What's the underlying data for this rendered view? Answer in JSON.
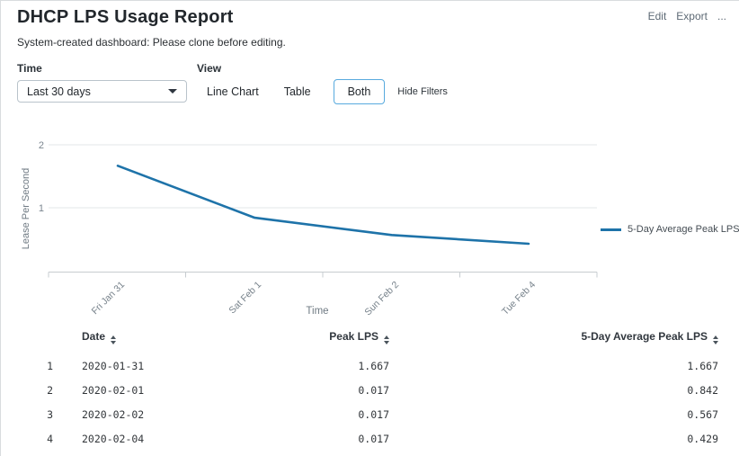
{
  "header": {
    "title": "DHCP LPS Usage Report",
    "subtitle": "System-created dashboard: Please clone before editing.",
    "actions": {
      "edit": "Edit",
      "export": "Export",
      "more": "..."
    }
  },
  "filters": {
    "time_label": "Time",
    "time_value": "Last 30 days",
    "view_label": "View",
    "view_options": [
      {
        "label": "Line Chart",
        "selected": false
      },
      {
        "label": "Table",
        "selected": false
      },
      {
        "label": "Both",
        "selected": true
      }
    ],
    "hide_filters_label": "Hide Filters"
  },
  "chart_data": {
    "type": "line",
    "title": "",
    "xlabel": "Time",
    "ylabel": "Lease Per Second",
    "x": [
      "Fri Jan 31",
      "Sat Feb 1",
      "Sun Feb 2",
      "Tue Feb 4"
    ],
    "series": [
      {
        "name": "5-Day Average Peak LPS",
        "values": [
          1.667,
          0.842,
          0.567,
          0.429
        ],
        "color": "#1e73a9"
      }
    ],
    "ylim": [
      0,
      2
    ],
    "yticks": [
      1,
      2
    ],
    "grid": "horizontal",
    "legend_position": "right"
  },
  "table": {
    "columns": [
      {
        "label": "Date",
        "sortable": true
      },
      {
        "label": "Peak LPS",
        "sortable": true
      },
      {
        "label": "5-Day Average Peak LPS",
        "sortable": true
      }
    ],
    "rows": [
      {
        "index": "1",
        "date": "2020-01-31",
        "peak_lps": "1.667",
        "avg_peak_lps": "1.667"
      },
      {
        "index": "2",
        "date": "2020-02-01",
        "peak_lps": "0.017",
        "avg_peak_lps": "0.842"
      },
      {
        "index": "3",
        "date": "2020-02-02",
        "peak_lps": "0.017",
        "avg_peak_lps": "0.567"
      },
      {
        "index": "4",
        "date": "2020-02-04",
        "peak_lps": "0.017",
        "avg_peak_lps": "0.429"
      }
    ]
  }
}
